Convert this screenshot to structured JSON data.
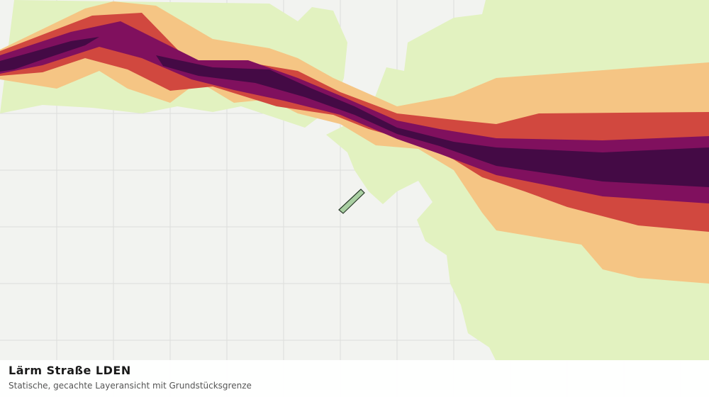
{
  "panel": {
    "title": "Lärm Straße LDEN",
    "subtitle": "Statische, gecachte Layeransicht mit Grundstücksgrenze"
  }
}
